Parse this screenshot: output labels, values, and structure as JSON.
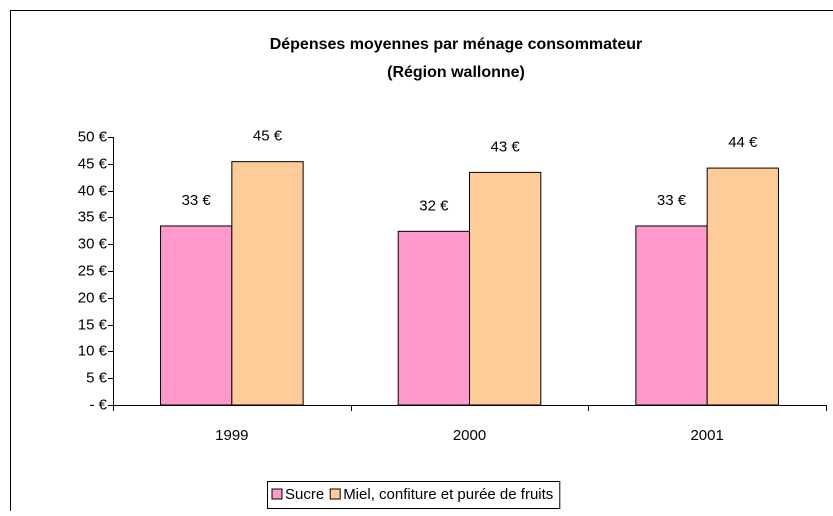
{
  "chart_data": {
    "type": "bar",
    "title": "Dépenses moyennes par ménage consommateur",
    "subtitle": "(Région wallonne)",
    "categories": [
      "1999",
      "2000",
      "2001"
    ],
    "series": [
      {
        "name": "Sucre",
        "color": "#ff99cc",
        "values": [
          33.4,
          32.4,
          33.4
        ],
        "value_labels": [
          "33 €",
          "32 €",
          "33 €"
        ]
      },
      {
        "name": "Miel, confiture et purée de fruits",
        "color": "#ffcc99",
        "values": [
          45.4,
          43.4,
          44.2
        ],
        "value_labels": [
          "45 €",
          "43 €",
          "44 €"
        ]
      }
    ],
    "ylim": [
      0,
      50
    ],
    "yticks": [
      {
        "value": 0,
        "label": "-   €"
      },
      {
        "value": 5,
        "label": "5 €"
      },
      {
        "value": 10,
        "label": "10 €"
      },
      {
        "value": 15,
        "label": "15 €"
      },
      {
        "value": 20,
        "label": "20 €"
      },
      {
        "value": 25,
        "label": "25 €"
      },
      {
        "value": 30,
        "label": "30 €"
      },
      {
        "value": 35,
        "label": "35 €"
      },
      {
        "value": 40,
        "label": "40 €"
      },
      {
        "value": 45,
        "label": "45 €"
      },
      {
        "value": 50,
        "label": "50 €"
      }
    ],
    "legend": "bottom"
  }
}
